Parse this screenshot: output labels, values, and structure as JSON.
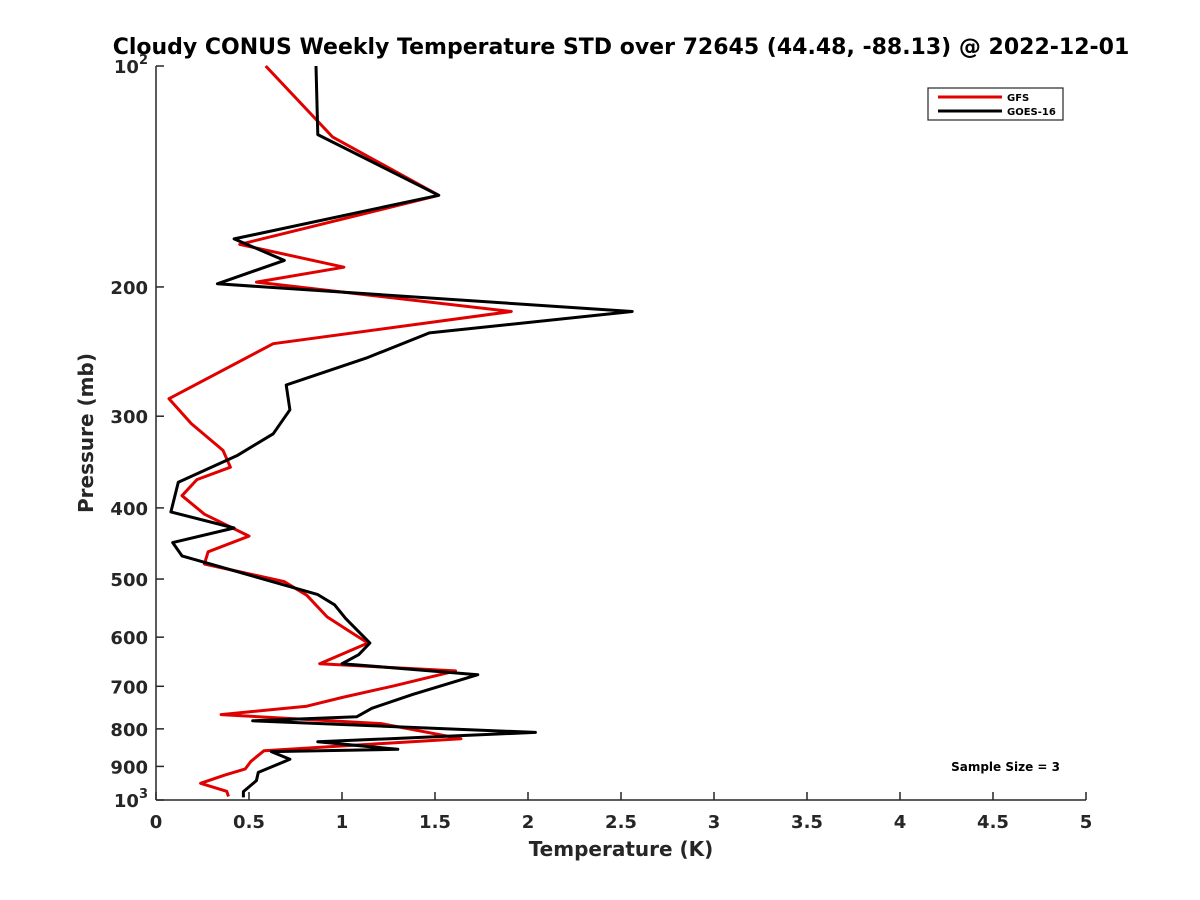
{
  "chart_data": {
    "type": "line",
    "title": "Cloudy CONUS Weekly Temperature STD over 72645 (44.48, -88.13) @ 2022-12-01",
    "xlabel": "Temperature (K)",
    "ylabel": "Pressure (mb)",
    "xlim": [
      0,
      5
    ],
    "ylim": [
      100,
      1000
    ],
    "y_scale": "log",
    "y_reversed": true,
    "x_ticks": [
      "0",
      "0.5",
      "1",
      "1.5",
      "2",
      "2.5",
      "3",
      "3.5",
      "4",
      "4.5",
      "5"
    ],
    "y_ticks": [
      {
        "value": 100,
        "base": "10",
        "exp": "2"
      },
      {
        "value": 200,
        "label": "200"
      },
      {
        "value": 300,
        "label": "300"
      },
      {
        "value": 400,
        "label": "400"
      },
      {
        "value": 500,
        "label": "500"
      },
      {
        "value": 600,
        "label": "600"
      },
      {
        "value": 700,
        "label": "700"
      },
      {
        "value": 800,
        "label": "800"
      },
      {
        "value": 900,
        "label": "900"
      },
      {
        "value": 1000,
        "base": "10",
        "exp": "3"
      }
    ],
    "grid": false,
    "legend_position": "top-right",
    "annotation": "Sample Size = 3",
    "series": [
      {
        "name": "GFS",
        "color": "#e00000",
        "points": [
          [
            0.59,
            100
          ],
          [
            0.95,
            125
          ],
          [
            1.52,
            150
          ],
          [
            0.45,
            175
          ],
          [
            1.01,
            188
          ],
          [
            0.54,
            197
          ],
          [
            1.91,
            216
          ],
          [
            0.63,
            239
          ],
          [
            0.07,
            284
          ],
          [
            0.19,
            307
          ],
          [
            0.36,
            334
          ],
          [
            0.4,
            352
          ],
          [
            0.22,
            366
          ],
          [
            0.14,
            385
          ],
          [
            0.26,
            408
          ],
          [
            0.5,
            437
          ],
          [
            0.28,
            459
          ],
          [
            0.26,
            477
          ],
          [
            0.69,
            504
          ],
          [
            0.81,
            526
          ],
          [
            0.92,
            563
          ],
          [
            1.04,
            589
          ],
          [
            1.14,
            611
          ],
          [
            0.88,
            652
          ],
          [
            1.61,
            667
          ],
          [
            1.28,
            699
          ],
          [
            1.0,
            725
          ],
          [
            0.81,
            745
          ],
          [
            0.35,
            765
          ],
          [
            1.21,
            787
          ],
          [
            1.64,
            825
          ],
          [
            0.58,
            857
          ],
          [
            0.51,
            886
          ],
          [
            0.48,
            907
          ],
          [
            0.37,
            925
          ],
          [
            0.24,
            949
          ],
          [
            0.38,
            973
          ],
          [
            0.39,
            989
          ]
        ]
      },
      {
        "name": "GOES-16",
        "color": "#000000",
        "points": [
          [
            0.86,
            100
          ],
          [
            0.87,
            124
          ],
          [
            1.52,
            150
          ],
          [
            0.42,
            172
          ],
          [
            0.69,
            184
          ],
          [
            0.33,
            198
          ],
          [
            2.56,
            216
          ],
          [
            1.47,
            231
          ],
          [
            1.13,
            250
          ],
          [
            0.7,
            272
          ],
          [
            0.72,
            294
          ],
          [
            0.63,
            317
          ],
          [
            0.44,
            339
          ],
          [
            0.12,
            369
          ],
          [
            0.08,
            405
          ],
          [
            0.42,
            426
          ],
          [
            0.09,
            446
          ],
          [
            0.14,
            465
          ],
          [
            0.87,
            525
          ],
          [
            0.96,
            542
          ],
          [
            1.02,
            566
          ],
          [
            1.15,
            611
          ],
          [
            1.09,
            634
          ],
          [
            1.0,
            652
          ],
          [
            1.73,
            675
          ],
          [
            1.38,
            718
          ],
          [
            1.16,
            750
          ],
          [
            1.08,
            770
          ],
          [
            0.52,
            780
          ],
          [
            2.04,
            809
          ],
          [
            0.87,
            833
          ],
          [
            1.3,
            853
          ],
          [
            0.62,
            859
          ],
          [
            0.72,
            880
          ],
          [
            0.55,
            917
          ],
          [
            0.54,
            941
          ],
          [
            0.47,
            974
          ],
          [
            0.47,
            992
          ]
        ]
      }
    ]
  }
}
